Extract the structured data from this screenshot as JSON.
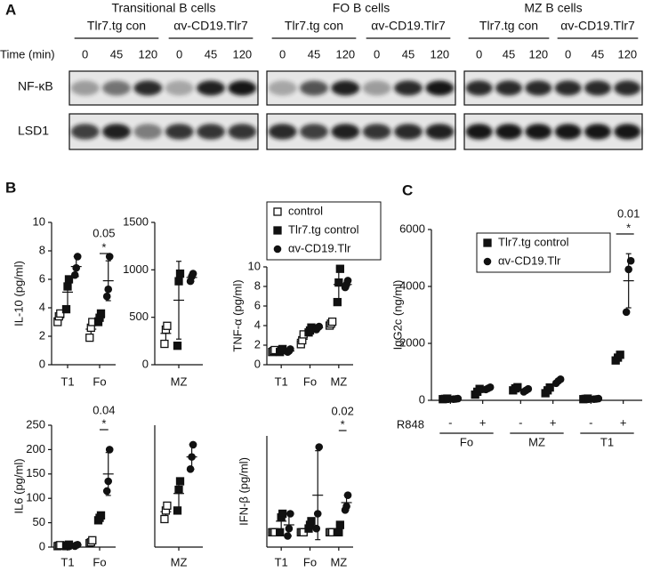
{
  "panels": [
    "A",
    "B",
    "C"
  ],
  "blots": {
    "groups": [
      {
        "title": "Transitional B cells",
        "conditions": [
          "Tlr7.tg con",
          "αv-CD19.Tlr7"
        ]
      },
      {
        "title": "FO B cells",
        "conditions": [
          "Tlr7.tg con",
          "αv-CD19.Tlr7"
        ]
      },
      {
        "title": "MZ B cells",
        "conditions": [
          "Tlr7.tg con",
          "αv-CD19.Tlr7"
        ]
      }
    ],
    "time_label": "Time (min)",
    "times": [
      "0",
      "45",
      "120"
    ],
    "rows": [
      "NF-κB",
      "LSD1"
    ]
  },
  "chart_data": [
    {
      "type": "scatter",
      "ylabel": "IL-10 (pg/ml)",
      "ylim": [
        0,
        10
      ],
      "yticks": [
        0,
        2,
        4,
        6,
        8,
        10
      ],
      "categories": [
        "T1",
        "Fo"
      ],
      "series": [
        {
          "marker": "open-square",
          "values": [
            [
              3.0,
              3.4,
              3.6
            ],
            [
              1.9,
              2.6,
              3.0
            ]
          ],
          "means": [
            3.3,
            2.5
          ],
          "errors": [
            0.3,
            0.5
          ]
        },
        {
          "marker": "square",
          "values": [
            [
              3.9,
              5.5,
              6.0
            ],
            [
              3.0,
              3.3,
              3.6
            ]
          ],
          "means": [
            5.1,
            3.3
          ],
          "errors": [
            1.1,
            0.3
          ]
        },
        {
          "marker": "circle",
          "values": [
            [
              6.3,
              6.8,
              7.6
            ],
            [
              4.8,
              5.3,
              7.6
            ]
          ],
          "means": [
            6.9,
            5.9
          ],
          "errors": [
            0.7,
            1.4
          ]
        }
      ],
      "annotations": [
        {
          "text": "0.05",
          "symbol": "*"
        }
      ]
    },
    {
      "type": "scatter",
      "ylim": [
        0,
        1500
      ],
      "yticks": [
        0,
        500,
        1000,
        1500
      ],
      "categories": [
        "MZ"
      ],
      "series": [
        {
          "marker": "open-square",
          "values": [
            [
              220,
              370,
              410
            ]
          ],
          "means": [
            330
          ],
          "errors": [
            100
          ]
        },
        {
          "marker": "square",
          "values": [
            [
              200,
              880,
              960
            ]
          ],
          "means": [
            680
          ],
          "errors": [
            410
          ]
        },
        {
          "marker": "circle",
          "values": [
            [
              880,
              930,
              960
            ]
          ],
          "means": [
            920
          ],
          "errors": [
            40
          ]
        }
      ]
    },
    {
      "type": "scatter",
      "ylabel": "TNF-α (pg/ml)",
      "ylim": [
        0,
        10
      ],
      "yticks": [
        0,
        2,
        4,
        6,
        8,
        10
      ],
      "categories": [
        "T1",
        "Fo",
        "MZ"
      ],
      "series": [
        {
          "name": "control",
          "marker": "open-square",
          "values": [
            [
              1.3,
              1.4,
              1.5
            ],
            [
              2.1,
              2.5,
              3.1
            ],
            [
              4.0,
              4.2,
              4.4
            ]
          ],
          "means": [
            1.4,
            2.6,
            4.2
          ],
          "errors": [
            0.1,
            0.5,
            0.2
          ]
        },
        {
          "name": "Tlr7.tg control",
          "marker": "square",
          "values": [
            [
              1.3,
              1.5,
              1.6
            ],
            [
              3.3,
              3.5,
              3.8
            ],
            [
              6.4,
              8.4,
              9.8
            ]
          ],
          "means": [
            1.5,
            3.5,
            8.2
          ],
          "errors": [
            0.15,
            0.25,
            1.7
          ]
        },
        {
          "name": "αv-CD19.Tlr",
          "marker": "circle",
          "values": [
            [
              1.3,
              1.4,
              1.6
            ],
            [
              3.6,
              3.8,
              3.9
            ],
            [
              7.9,
              8.2,
              8.6
            ]
          ],
          "means": [
            1.4,
            3.8,
            8.2
          ],
          "errors": [
            0.15,
            0.15,
            0.35
          ]
        }
      ]
    },
    {
      "type": "scatter",
      "ylabel": "IL6 (pg/ml)",
      "ylim": [
        0,
        250
      ],
      "yticks": [
        0,
        50,
        100,
        150,
        200,
        250
      ],
      "categories": [
        "T1",
        "Fo"
      ],
      "series": [
        {
          "marker": "open-square",
          "values": [
            [
              2,
              3,
              4
            ],
            [
              8,
              10,
              14
            ]
          ],
          "means": [
            3,
            11
          ],
          "errors": [
            1,
            3
          ]
        },
        {
          "marker": "square",
          "values": [
            [
              2,
              3,
              5
            ],
            [
              55,
              60,
              65
            ]
          ],
          "means": [
            3,
            60
          ],
          "errors": [
            1.5,
            5
          ]
        },
        {
          "marker": "circle",
          "values": [
            [
              2,
              4,
              5
            ],
            [
              115,
              135,
              200
            ]
          ],
          "means": [
            4,
            150
          ],
          "errors": [
            1.5,
            44
          ]
        }
      ],
      "annotations": [
        {
          "text": "0.04",
          "symbol": "*"
        }
      ]
    },
    {
      "type": "scatter",
      "ylim": [
        0,
        1000
      ],
      "categories": [
        "MZ"
      ],
      "series": [
        {
          "marker": "open-square",
          "values": [
            [
              230,
              300,
              340
            ]
          ],
          "means": [
            290
          ],
          "errors": [
            55
          ]
        },
        {
          "marker": "square",
          "values": [
            [
              300,
              470,
              540
            ]
          ],
          "means": [
            440
          ],
          "errors": [
            120
          ]
        },
        {
          "marker": "circle",
          "values": [
            [
              640,
              740,
              840
            ]
          ],
          "means": [
            740
          ],
          "errors": [
            100
          ]
        }
      ]
    },
    {
      "type": "scatter",
      "ylabel": "IFN-β (pg/ml)",
      "ylim": [
        1,
        4
      ],
      "categories": [
        "T1",
        "Fo",
        "MZ"
      ],
      "series": [
        {
          "marker": "open-square",
          "values": [
            [
              1.4,
              1.4,
              1.4
            ],
            [
              1.4,
              1.4,
              1.4
            ],
            [
              1.4,
              1.4,
              1.4
            ]
          ],
          "means": [
            1.4,
            1.4,
            1.4
          ],
          "errors": [
            0,
            0,
            0
          ]
        },
        {
          "marker": "square",
          "values": [
            [
              1.4,
              1.8,
              1.9
            ],
            [
              1.5,
              1.6,
              1.7
            ],
            [
              1.4,
              1.4,
              1.6
            ]
          ],
          "means": [
            1.7,
            1.6,
            1.5
          ],
          "errors": [
            0.25,
            0.1,
            0.1
          ]
        },
        {
          "marker": "circle",
          "values": [
            [
              1.3,
              1.5,
              1.9
            ],
            [
              1.5,
              1.9,
              3.7
            ],
            [
              2.0,
              2.1,
              2.4
            ]
          ],
          "means": [
            1.6,
            2.4,
            2.2
          ],
          "errors": [
            0.3,
            1.2,
            0.2
          ]
        }
      ],
      "annotations": [
        {
          "text": "0.02",
          "symbol": "*"
        }
      ]
    },
    {
      "type": "grouped-scatter",
      "ylabel": "IgG2c (ng/ml)",
      "ylim": [
        0,
        6000
      ],
      "yticks": [
        0,
        2000,
        4000,
        6000
      ],
      "categories": [
        "Fo",
        "MZ",
        "T1"
      ],
      "treatment_label": "R848",
      "treatments": [
        "-",
        "+"
      ],
      "series": [
        {
          "name": "Tlr7.tg control",
          "marker": "square",
          "values": [
            [
              [
                40,
                50,
                60
              ],
              [
                200,
                300,
                400
              ]
            ],
            [
              [
                350,
                420,
                460
              ],
              [
                250,
                350,
                450
              ]
            ],
            [
              [
                40,
                50,
                60
              ],
              [
                1400,
                1500,
                1600
              ]
            ]
          ],
          "means": [
            [
              50,
              300
            ],
            [
              410,
              350
            ],
            [
              50,
              1500
            ]
          ],
          "errors": [
            [
              10,
              100
            ],
            [
              55,
              100
            ],
            [
              10,
              100
            ]
          ]
        },
        {
          "name": "αv-CD19.Tlr",
          "marker": "circle",
          "values": [
            [
              [
                40,
                50,
                60
              ],
              [
                380,
                420,
                460
              ]
            ],
            [
              [
                300,
                350,
                400
              ],
              [
                600,
                680,
                740
              ]
            ],
            [
              [
                40,
                50,
                60
              ],
              [
                3100,
                4600,
                4900
              ]
            ]
          ],
          "means": [
            [
              50,
              420
            ],
            [
              350,
              670
            ],
            [
              50,
              4200
            ]
          ],
          "errors": [
            [
              10,
              40
            ],
            [
              50,
              70
            ],
            [
              10,
              950
            ]
          ]
        }
      ],
      "annotations": [
        {
          "text": "0.01",
          "symbol": "*"
        }
      ]
    }
  ]
}
